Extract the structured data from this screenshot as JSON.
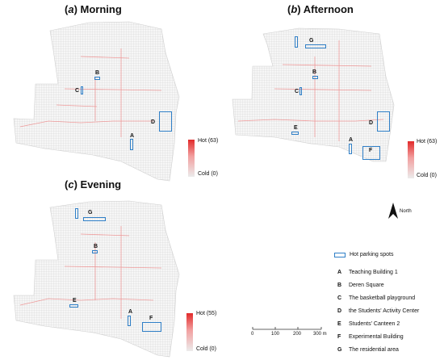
{
  "panels": [
    {
      "letter": "a",
      "period": "Morning",
      "labels": [
        "B",
        "C",
        "D",
        "A"
      ],
      "legend": {
        "hot": "Hot (63)",
        "cold": "Cold (0)"
      }
    },
    {
      "letter": "b",
      "period": "Afternoon",
      "labels": [
        "G",
        "B",
        "C",
        "D",
        "E",
        "A",
        "F"
      ],
      "legend": {
        "hot": "Hot (63)",
        "cold": "Cold (0)"
      }
    },
    {
      "letter": "c",
      "period": "Evening",
      "labels": [
        "G",
        "B",
        "E",
        "A",
        "F"
      ],
      "legend": {
        "hot": "Hot (55)",
        "cold": "Cold (0)"
      }
    }
  ],
  "north_label": "North",
  "legend": {
    "hot_spots": "Hot parking spots",
    "items": [
      {
        "key": "A",
        "name": "Teaching Building 1"
      },
      {
        "key": "B",
        "name": "Deren Square"
      },
      {
        "key": "C",
        "name": "The basketball playground"
      },
      {
        "key": "D",
        "name": "the Students' Activity Center"
      },
      {
        "key": "E",
        "name": "Students' Canteen 2"
      },
      {
        "key": "F",
        "name": "Experimental Building"
      },
      {
        "key": "G",
        "name": "The residential area"
      }
    ]
  },
  "scale": {
    "ticks": [
      "0",
      "100",
      "200",
      "300 m"
    ]
  },
  "colors": {
    "hot": "#e22a2a",
    "cold": "#ececec",
    "spot_outline": "#2f7fc7",
    "grid": "#d2d2d2"
  }
}
